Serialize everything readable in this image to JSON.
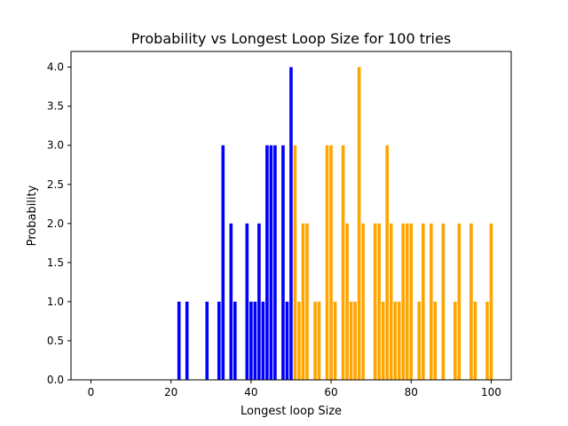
{
  "chart_data": {
    "type": "bar",
    "title": "Probability vs Longest Loop Size for 100 tries",
    "xlabel": "Longest loop Size",
    "ylabel": "Probability",
    "xlim": [
      -4.98,
      105
    ],
    "ylim": [
      0,
      4.2
    ],
    "xticks": [
      0,
      20,
      40,
      60,
      80,
      100
    ],
    "xtick_labels": [
      "0",
      "20",
      "40",
      "60",
      "80",
      "100"
    ],
    "yticks": [
      0,
      0.5,
      1,
      1.5,
      2,
      2.5,
      3,
      3.5,
      4
    ],
    "ytick_labels": [
      "0.0",
      "0.5",
      "1.0",
      "1.5",
      "2.0",
      "2.5",
      "3.0",
      "3.5",
      "4.0"
    ],
    "grid": false,
    "bar_width": 0.8,
    "colors": {
      "low": "#0000ff",
      "high": "#ffa500"
    },
    "threshold": 50,
    "x": [
      22,
      24,
      29,
      32,
      33,
      35,
      36,
      39,
      40,
      41,
      42,
      43,
      44,
      45,
      46,
      48,
      49,
      50,
      51,
      52,
      53,
      54,
      56,
      57,
      59,
      60,
      61,
      63,
      64,
      65,
      66,
      67,
      68,
      71,
      72,
      73,
      74,
      75,
      76,
      77,
      78,
      79,
      80,
      82,
      83,
      85,
      86,
      88,
      91,
      92,
      95,
      96,
      99,
      100
    ],
    "values": [
      1,
      1,
      1,
      1,
      3,
      2,
      1,
      2,
      1,
      1,
      2,
      1,
      3,
      3,
      3,
      3,
      1,
      4,
      3,
      1,
      2,
      2,
      1,
      1,
      3,
      3,
      1,
      3,
      2,
      1,
      1,
      4,
      2,
      2,
      2,
      1,
      3,
      2,
      1,
      1,
      2,
      2,
      2,
      1,
      2,
      2,
      1,
      2,
      1,
      2,
      2,
      1,
      1,
      2
    ]
  }
}
